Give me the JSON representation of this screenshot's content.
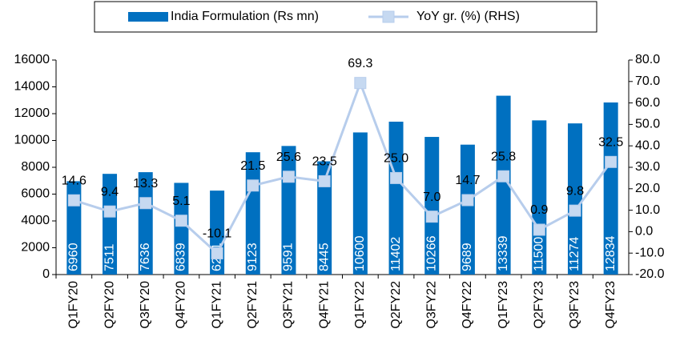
{
  "chart_data": {
    "type": "bar_line",
    "categories": [
      "Q1FY20",
      "Q2FY20",
      "Q3FY20",
      "Q4FY20",
      "Q1FY21",
      "Q2FY21",
      "Q3FY21",
      "Q4FY21",
      "Q1FY22",
      "Q2FY22",
      "Q3FY22",
      "Q4FY22",
      "Q1FY23",
      "Q2FY23",
      "Q3FY23",
      "Q4FY23"
    ],
    "series": [
      {
        "name": "India Formulation (Rs mn)",
        "type": "bar",
        "color": "#0070c0",
        "values": [
          6960,
          7511,
          7636,
          6839,
          6261,
          9123,
          9591,
          8445,
          10600,
          11402,
          10266,
          9689,
          13339,
          11500,
          11274,
          12834
        ]
      },
      {
        "name": "YoY gr. (%) (RHS)",
        "type": "line",
        "axis": "y2",
        "color": "#b7cdec",
        "values": [
          14.6,
          9.4,
          13.3,
          5.1,
          -10.1,
          21.5,
          25.6,
          23.5,
          69.3,
          25.0,
          7.0,
          14.7,
          25.8,
          0.9,
          9.8,
          32.5
        ],
        "value_labels": [
          "14.6",
          "9.4",
          "13.3",
          "5.1",
          "-10.1",
          "21.5",
          "25.6",
          "23.5",
          "69.3",
          "25.0",
          "7.0",
          "14.7",
          "25.8",
          "0.9",
          "9.8",
          "32.5"
        ]
      }
    ],
    "ylim": [
      0,
      16000
    ],
    "yticks": [
      0,
      2000,
      4000,
      6000,
      8000,
      10000,
      12000,
      14000,
      16000
    ],
    "y2lim": [
      -20,
      80
    ],
    "y2ticks": [
      {
        "value": -20,
        "label": "-20.0"
      },
      {
        "value": -10,
        "label": "-10.0"
      },
      {
        "value": 0,
        "label": "0.0"
      },
      {
        "value": 10,
        "label": "10.0"
      },
      {
        "value": 20,
        "label": "20.0"
      },
      {
        "value": 30,
        "label": "30.0"
      },
      {
        "value": 40,
        "label": "40.0"
      },
      {
        "value": 50,
        "label": "50.0"
      },
      {
        "value": 60,
        "label": "60.0"
      },
      {
        "value": 70,
        "label": "70.0"
      },
      {
        "value": 80,
        "label": "80.0"
      }
    ],
    "legend": "top",
    "grid": false
  }
}
